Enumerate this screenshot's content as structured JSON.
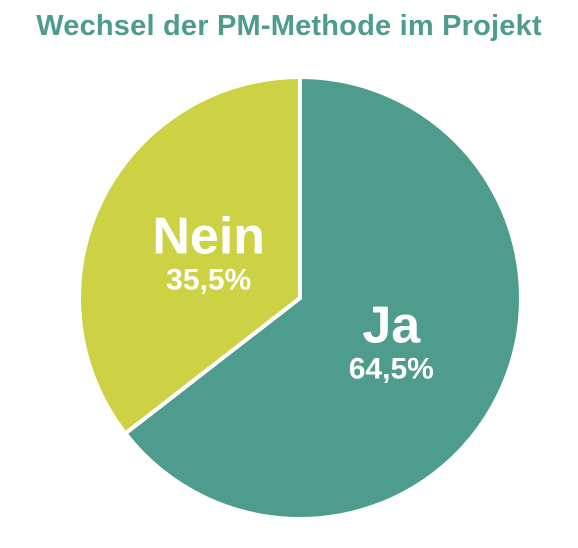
{
  "chart_data": {
    "type": "pie",
    "title": "Wechsel der PM-Methode im Projekt",
    "categories": [
      "Ja",
      "Nein"
    ],
    "values": [
      64.5,
      35.5
    ],
    "value_labels": [
      "64,5%",
      "35,5%"
    ],
    "colors": [
      "#4e9c8e",
      "#cdd244"
    ],
    "start": "top",
    "direction": "clockwise",
    "legend": "none"
  },
  "colors": {
    "title": "#4e9c8e",
    "separator": "#ffffff"
  }
}
